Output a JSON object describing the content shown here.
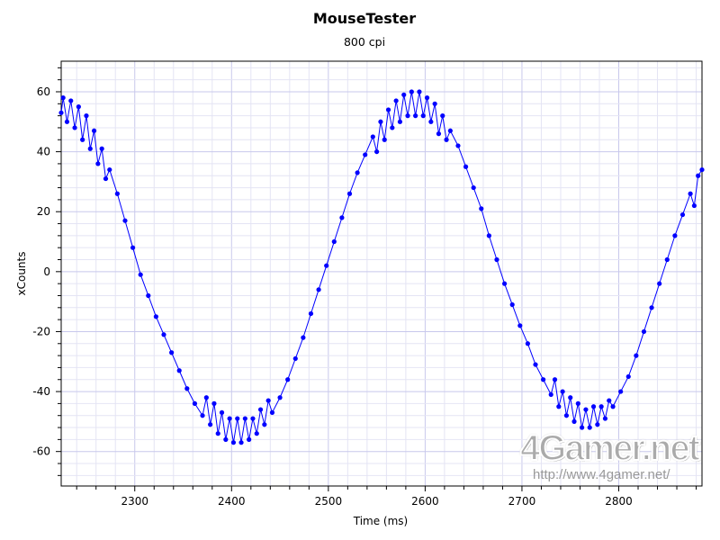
{
  "chart_data": {
    "type": "line",
    "title": "MouseTester",
    "subtitle": "800 cpi",
    "xlabel": "Time (ms)",
    "ylabel": "xCounts",
    "xlim": [
      2224,
      2886
    ],
    "ylim": [
      -71.5,
      70.2
    ],
    "x_ticks": [
      2300,
      2400,
      2500,
      2600,
      2700,
      2800
    ],
    "x_minor_step": 20,
    "y_ticks": [
      -60,
      -40,
      -20,
      0,
      20,
      40,
      60
    ],
    "y_minor_step": 4,
    "grid": true,
    "series": [
      {
        "name": "xCounts",
        "color": "#0000ff",
        "x": [
          2224,
          2226,
          2230,
          2234,
          2238,
          2242,
          2246,
          2250,
          2254,
          2258,
          2262,
          2266,
          2270,
          2274,
          2282,
          2290,
          2298,
          2306,
          2314,
          2322,
          2330,
          2338,
          2346,
          2354,
          2362,
          2370,
          2374,
          2378,
          2382,
          2386,
          2390,
          2394,
          2398,
          2402,
          2406,
          2410,
          2414,
          2418,
          2422,
          2426,
          2430,
          2434,
          2438,
          2442,
          2450,
          2458,
          2466,
          2474,
          2482,
          2490,
          2498,
          2506,
          2514,
          2522,
          2530,
          2538,
          2546,
          2550,
          2554,
          2558,
          2562,
          2566,
          2570,
          2574,
          2578,
          2582,
          2586,
          2590,
          2594,
          2598,
          2602,
          2606,
          2610,
          2614,
          2618,
          2622,
          2626,
          2634,
          2642,
          2650,
          2658,
          2666,
          2674,
          2682,
          2690,
          2698,
          2706,
          2714,
          2722,
          2730,
          2734,
          2738,
          2742,
          2746,
          2750,
          2754,
          2758,
          2762,
          2766,
          2770,
          2774,
          2778,
          2782,
          2786,
          2790,
          2794,
          2802,
          2810,
          2818,
          2826,
          2834,
          2842,
          2850,
          2858,
          2866,
          2874,
          2878,
          2882,
          2886
        ],
        "y": [
          53,
          58,
          50,
          57,
          48,
          55,
          44,
          52,
          41,
          47,
          36,
          41,
          31,
          34,
          26,
          17,
          8,
          -1,
          -8,
          -15,
          -21,
          -27,
          -33,
          -39,
          -44,
          -48,
          -42,
          -51,
          -44,
          -54,
          -47,
          -56,
          -49,
          -57,
          -49,
          -57,
          -49,
          -56,
          -49,
          -54,
          -46,
          -51,
          -43,
          -47,
          -42,
          -36,
          -29,
          -22,
          -14,
          -6,
          2,
          10,
          18,
          26,
          33,
          39,
          45,
          40,
          50,
          44,
          54,
          48,
          57,
          50,
          59,
          52,
          60,
          52,
          60,
          52,
          58,
          50,
          56,
          46,
          52,
          44,
          47,
          42,
          35,
          28,
          21,
          12,
          4,
          -4,
          -11,
          -18,
          -24,
          -31,
          -36,
          -41,
          -36,
          -45,
          -40,
          -48,
          -42,
          -50,
          -44,
          -52,
          -46,
          -52,
          -45,
          -51,
          -45,
          -49,
          -43,
          -45,
          -40,
          -35,
          -28,
          -20,
          -12,
          -4,
          4,
          12,
          19,
          26,
          22,
          32,
          34
        ]
      }
    ]
  },
  "watermark": {
    "logo": "4Gamer.net",
    "url": "http://www.4gamer.net/"
  }
}
